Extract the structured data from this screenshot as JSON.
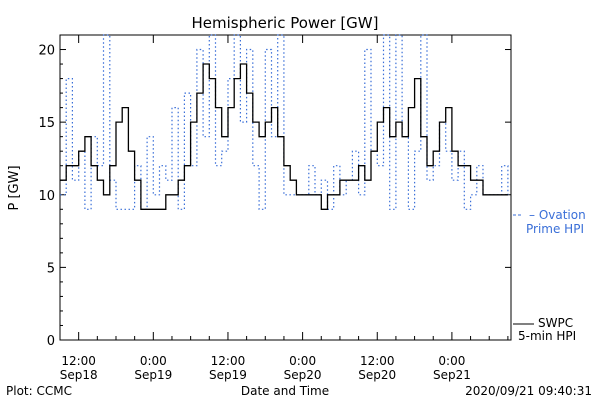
{
  "chart_data": {
    "type": "line",
    "title": "Hemispheric Power [GW]",
    "xlabel": "Date and Time",
    "ylabel": "P [GW]",
    "ylim": [
      0,
      21
    ],
    "x_unit": "hours since 2020-09-18 00:00 UT",
    "xlim": [
      9,
      81.5
    ],
    "yticks": [
      0,
      5,
      10,
      15,
      20
    ],
    "xticks": [
      {
        "x": 12,
        "time": "12:00",
        "date": "Sep18"
      },
      {
        "x": 24,
        "time": "0:00",
        "date": "Sep19"
      },
      {
        "x": 36,
        "time": "12:00",
        "date": "Sep19"
      },
      {
        "x": 48,
        "time": "0:00",
        "date": "Sep20"
      },
      {
        "x": 60,
        "time": "12:00",
        "date": "Sep20"
      },
      {
        "x": 72,
        "time": "0:00",
        "date": "Sep21"
      }
    ],
    "series": [
      {
        "name": "SWPC 5-min HPI",
        "legend_lines": [
          "SWPC",
          "5-min HPI"
        ],
        "color": "#000000",
        "style": "solid",
        "x": [
          9,
          10,
          11,
          12,
          13,
          14,
          15,
          16,
          17,
          18,
          19,
          20,
          21,
          22,
          23,
          24,
          25,
          26,
          27,
          28,
          29,
          30,
          31,
          32,
          33,
          34,
          35,
          36,
          37,
          38,
          39,
          40,
          41,
          42,
          43,
          44,
          45,
          46,
          47,
          48,
          49,
          50,
          51,
          52,
          53,
          54,
          55,
          56,
          57,
          58,
          59,
          60,
          61,
          62,
          63,
          64,
          65,
          66,
          67,
          68,
          69,
          70,
          71,
          72,
          73,
          74,
          75,
          76,
          77,
          78,
          79,
          80,
          81
        ],
        "values": [
          11,
          12,
          12,
          13,
          14,
          12,
          11,
          10,
          12,
          15,
          16,
          13,
          11,
          9,
          9,
          9,
          9,
          10,
          10,
          11,
          12,
          15,
          17,
          19,
          18,
          16,
          14,
          16,
          18,
          19,
          17,
          15,
          14,
          15,
          16,
          14,
          12,
          11,
          10,
          10,
          10,
          10,
          9,
          10,
          10,
          11,
          11,
          11,
          12,
          11,
          13,
          15,
          16,
          14,
          15,
          14,
          16,
          18,
          14,
          12,
          13,
          15,
          16,
          13,
          12,
          12,
          11,
          11,
          10,
          10,
          10,
          10,
          10
        ]
      },
      {
        "name": "Ovation Prime HPI",
        "legend_lines": [
          "Ovation",
          "Prime HPI"
        ],
        "color": "#3a6fd8",
        "style": "dotted",
        "x": [
          9,
          10,
          11,
          12,
          13,
          14,
          15,
          16,
          17,
          18,
          19,
          20,
          21,
          22,
          23,
          24,
          25,
          26,
          27,
          28,
          29,
          30,
          31,
          32,
          33,
          34,
          35,
          36,
          37,
          38,
          39,
          40,
          41,
          42,
          43,
          44,
          45,
          46,
          47,
          48,
          49,
          50,
          51,
          52,
          53,
          54,
          55,
          56,
          57,
          58,
          59,
          60,
          61,
          62,
          63,
          64,
          65,
          66,
          67,
          68,
          69,
          70,
          71,
          72,
          73,
          74,
          75,
          76,
          77,
          78,
          79,
          80,
          81
        ],
        "values": [
          10,
          18,
          11,
          13,
          9,
          14,
          12,
          21,
          11,
          9,
          9,
          9,
          12,
          9,
          14,
          10,
          12,
          11,
          16,
          9,
          17,
          12,
          20,
          14,
          21,
          12,
          13,
          18,
          21,
          15,
          20,
          12,
          9,
          20,
          14,
          21,
          10,
          10,
          10,
          10,
          12,
          10,
          11,
          9,
          12,
          10,
          11,
          13,
          10,
          20,
          13,
          12,
          21,
          9,
          21,
          14,
          9,
          13,
          21,
          11,
          12,
          15,
          13,
          11,
          13,
          9,
          10,
          12,
          10,
          10,
          10,
          12,
          10
        ]
      }
    ]
  },
  "footer": {
    "left": "Plot: CCMC",
    "right": "2020/09/21 09:40:31"
  }
}
